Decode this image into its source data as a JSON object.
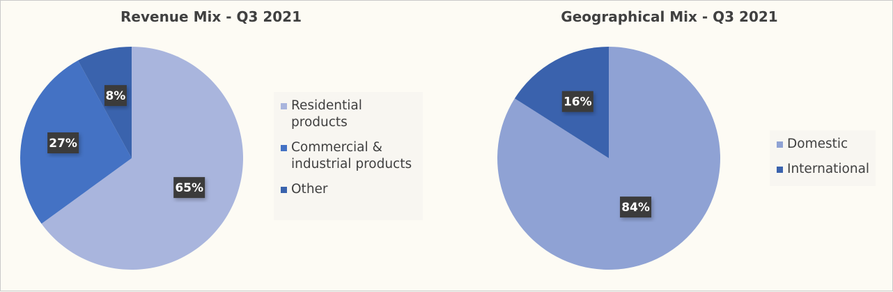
{
  "chart_data": [
    {
      "type": "pie",
      "title": "Revenue Mix - Q3 2021",
      "series": [
        {
          "name": "Residential\nproducts",
          "value": 65,
          "label": "65%",
          "color": "#a9b5dd"
        },
        {
          "name": "Commercial &\nindustrial products",
          "value": 27,
          "label": "27%",
          "color": "#4472c4"
        },
        {
          "name": "Other",
          "value": 8,
          "label": "8%",
          "color": "#3a63ad"
        }
      ],
      "legend_position": "right"
    },
    {
      "type": "pie",
      "title": "Geographical Mix - Q3 2021",
      "series": [
        {
          "name": "Domestic",
          "value": 84,
          "label": "84%",
          "color": "#8fa2d4"
        },
        {
          "name": "International",
          "value": 16,
          "label": "16%",
          "color": "#3a62ad"
        }
      ],
      "legend_position": "right"
    }
  ]
}
